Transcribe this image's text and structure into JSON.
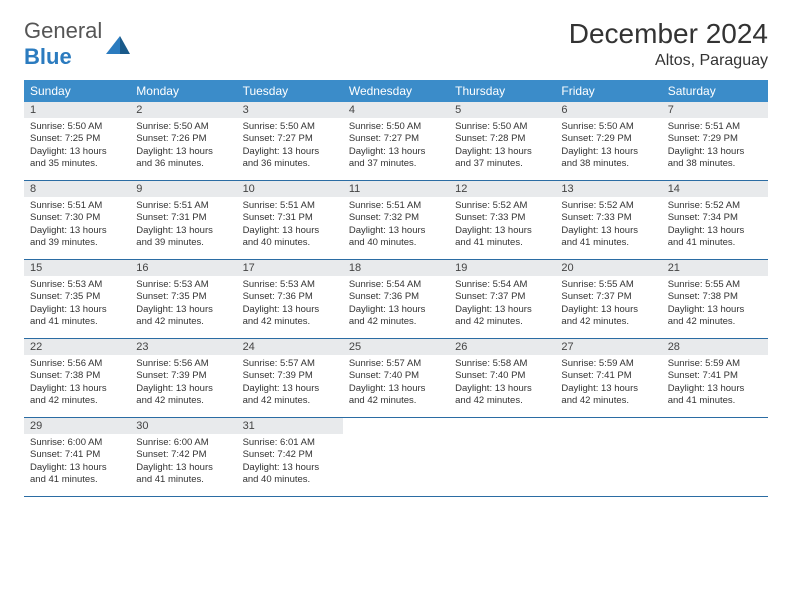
{
  "brand": {
    "text_a": "General",
    "text_b": "Blue"
  },
  "title": "December 2024",
  "location": "Altos, Paraguay",
  "colors": {
    "header_bg": "#3b8cc9",
    "header_text": "#ffffff",
    "daynum_bg": "#e8eaec",
    "week_border": "#2b6ca3",
    "brand_blue": "#2b7bbf"
  },
  "dow": [
    "Sunday",
    "Monday",
    "Tuesday",
    "Wednesday",
    "Thursday",
    "Friday",
    "Saturday"
  ],
  "weeks": [
    [
      {
        "n": "1",
        "sr": "Sunrise: 5:50 AM",
        "ss": "Sunset: 7:25 PM",
        "dl": "Daylight: 13 hours and 35 minutes."
      },
      {
        "n": "2",
        "sr": "Sunrise: 5:50 AM",
        "ss": "Sunset: 7:26 PM",
        "dl": "Daylight: 13 hours and 36 minutes."
      },
      {
        "n": "3",
        "sr": "Sunrise: 5:50 AM",
        "ss": "Sunset: 7:27 PM",
        "dl": "Daylight: 13 hours and 36 minutes."
      },
      {
        "n": "4",
        "sr": "Sunrise: 5:50 AM",
        "ss": "Sunset: 7:27 PM",
        "dl": "Daylight: 13 hours and 37 minutes."
      },
      {
        "n": "5",
        "sr": "Sunrise: 5:50 AM",
        "ss": "Sunset: 7:28 PM",
        "dl": "Daylight: 13 hours and 37 minutes."
      },
      {
        "n": "6",
        "sr": "Sunrise: 5:50 AM",
        "ss": "Sunset: 7:29 PM",
        "dl": "Daylight: 13 hours and 38 minutes."
      },
      {
        "n": "7",
        "sr": "Sunrise: 5:51 AM",
        "ss": "Sunset: 7:29 PM",
        "dl": "Daylight: 13 hours and 38 minutes."
      }
    ],
    [
      {
        "n": "8",
        "sr": "Sunrise: 5:51 AM",
        "ss": "Sunset: 7:30 PM",
        "dl": "Daylight: 13 hours and 39 minutes."
      },
      {
        "n": "9",
        "sr": "Sunrise: 5:51 AM",
        "ss": "Sunset: 7:31 PM",
        "dl": "Daylight: 13 hours and 39 minutes."
      },
      {
        "n": "10",
        "sr": "Sunrise: 5:51 AM",
        "ss": "Sunset: 7:31 PM",
        "dl": "Daylight: 13 hours and 40 minutes."
      },
      {
        "n": "11",
        "sr": "Sunrise: 5:51 AM",
        "ss": "Sunset: 7:32 PM",
        "dl": "Daylight: 13 hours and 40 minutes."
      },
      {
        "n": "12",
        "sr": "Sunrise: 5:52 AM",
        "ss": "Sunset: 7:33 PM",
        "dl": "Daylight: 13 hours and 41 minutes."
      },
      {
        "n": "13",
        "sr": "Sunrise: 5:52 AM",
        "ss": "Sunset: 7:33 PM",
        "dl": "Daylight: 13 hours and 41 minutes."
      },
      {
        "n": "14",
        "sr": "Sunrise: 5:52 AM",
        "ss": "Sunset: 7:34 PM",
        "dl": "Daylight: 13 hours and 41 minutes."
      }
    ],
    [
      {
        "n": "15",
        "sr": "Sunrise: 5:53 AM",
        "ss": "Sunset: 7:35 PM",
        "dl": "Daylight: 13 hours and 41 minutes."
      },
      {
        "n": "16",
        "sr": "Sunrise: 5:53 AM",
        "ss": "Sunset: 7:35 PM",
        "dl": "Daylight: 13 hours and 42 minutes."
      },
      {
        "n": "17",
        "sr": "Sunrise: 5:53 AM",
        "ss": "Sunset: 7:36 PM",
        "dl": "Daylight: 13 hours and 42 minutes."
      },
      {
        "n": "18",
        "sr": "Sunrise: 5:54 AM",
        "ss": "Sunset: 7:36 PM",
        "dl": "Daylight: 13 hours and 42 minutes."
      },
      {
        "n": "19",
        "sr": "Sunrise: 5:54 AM",
        "ss": "Sunset: 7:37 PM",
        "dl": "Daylight: 13 hours and 42 minutes."
      },
      {
        "n": "20",
        "sr": "Sunrise: 5:55 AM",
        "ss": "Sunset: 7:37 PM",
        "dl": "Daylight: 13 hours and 42 minutes."
      },
      {
        "n": "21",
        "sr": "Sunrise: 5:55 AM",
        "ss": "Sunset: 7:38 PM",
        "dl": "Daylight: 13 hours and 42 minutes."
      }
    ],
    [
      {
        "n": "22",
        "sr": "Sunrise: 5:56 AM",
        "ss": "Sunset: 7:38 PM",
        "dl": "Daylight: 13 hours and 42 minutes."
      },
      {
        "n": "23",
        "sr": "Sunrise: 5:56 AM",
        "ss": "Sunset: 7:39 PM",
        "dl": "Daylight: 13 hours and 42 minutes."
      },
      {
        "n": "24",
        "sr": "Sunrise: 5:57 AM",
        "ss": "Sunset: 7:39 PM",
        "dl": "Daylight: 13 hours and 42 minutes."
      },
      {
        "n": "25",
        "sr": "Sunrise: 5:57 AM",
        "ss": "Sunset: 7:40 PM",
        "dl": "Daylight: 13 hours and 42 minutes."
      },
      {
        "n": "26",
        "sr": "Sunrise: 5:58 AM",
        "ss": "Sunset: 7:40 PM",
        "dl": "Daylight: 13 hours and 42 minutes."
      },
      {
        "n": "27",
        "sr": "Sunrise: 5:59 AM",
        "ss": "Sunset: 7:41 PM",
        "dl": "Daylight: 13 hours and 42 minutes."
      },
      {
        "n": "28",
        "sr": "Sunrise: 5:59 AM",
        "ss": "Sunset: 7:41 PM",
        "dl": "Daylight: 13 hours and 41 minutes."
      }
    ],
    [
      {
        "n": "29",
        "sr": "Sunrise: 6:00 AM",
        "ss": "Sunset: 7:41 PM",
        "dl": "Daylight: 13 hours and 41 minutes."
      },
      {
        "n": "30",
        "sr": "Sunrise: 6:00 AM",
        "ss": "Sunset: 7:42 PM",
        "dl": "Daylight: 13 hours and 41 minutes."
      },
      {
        "n": "31",
        "sr": "Sunrise: 6:01 AM",
        "ss": "Sunset: 7:42 PM",
        "dl": "Daylight: 13 hours and 40 minutes."
      },
      {
        "empty": true
      },
      {
        "empty": true
      },
      {
        "empty": true
      },
      {
        "empty": true
      }
    ]
  ]
}
